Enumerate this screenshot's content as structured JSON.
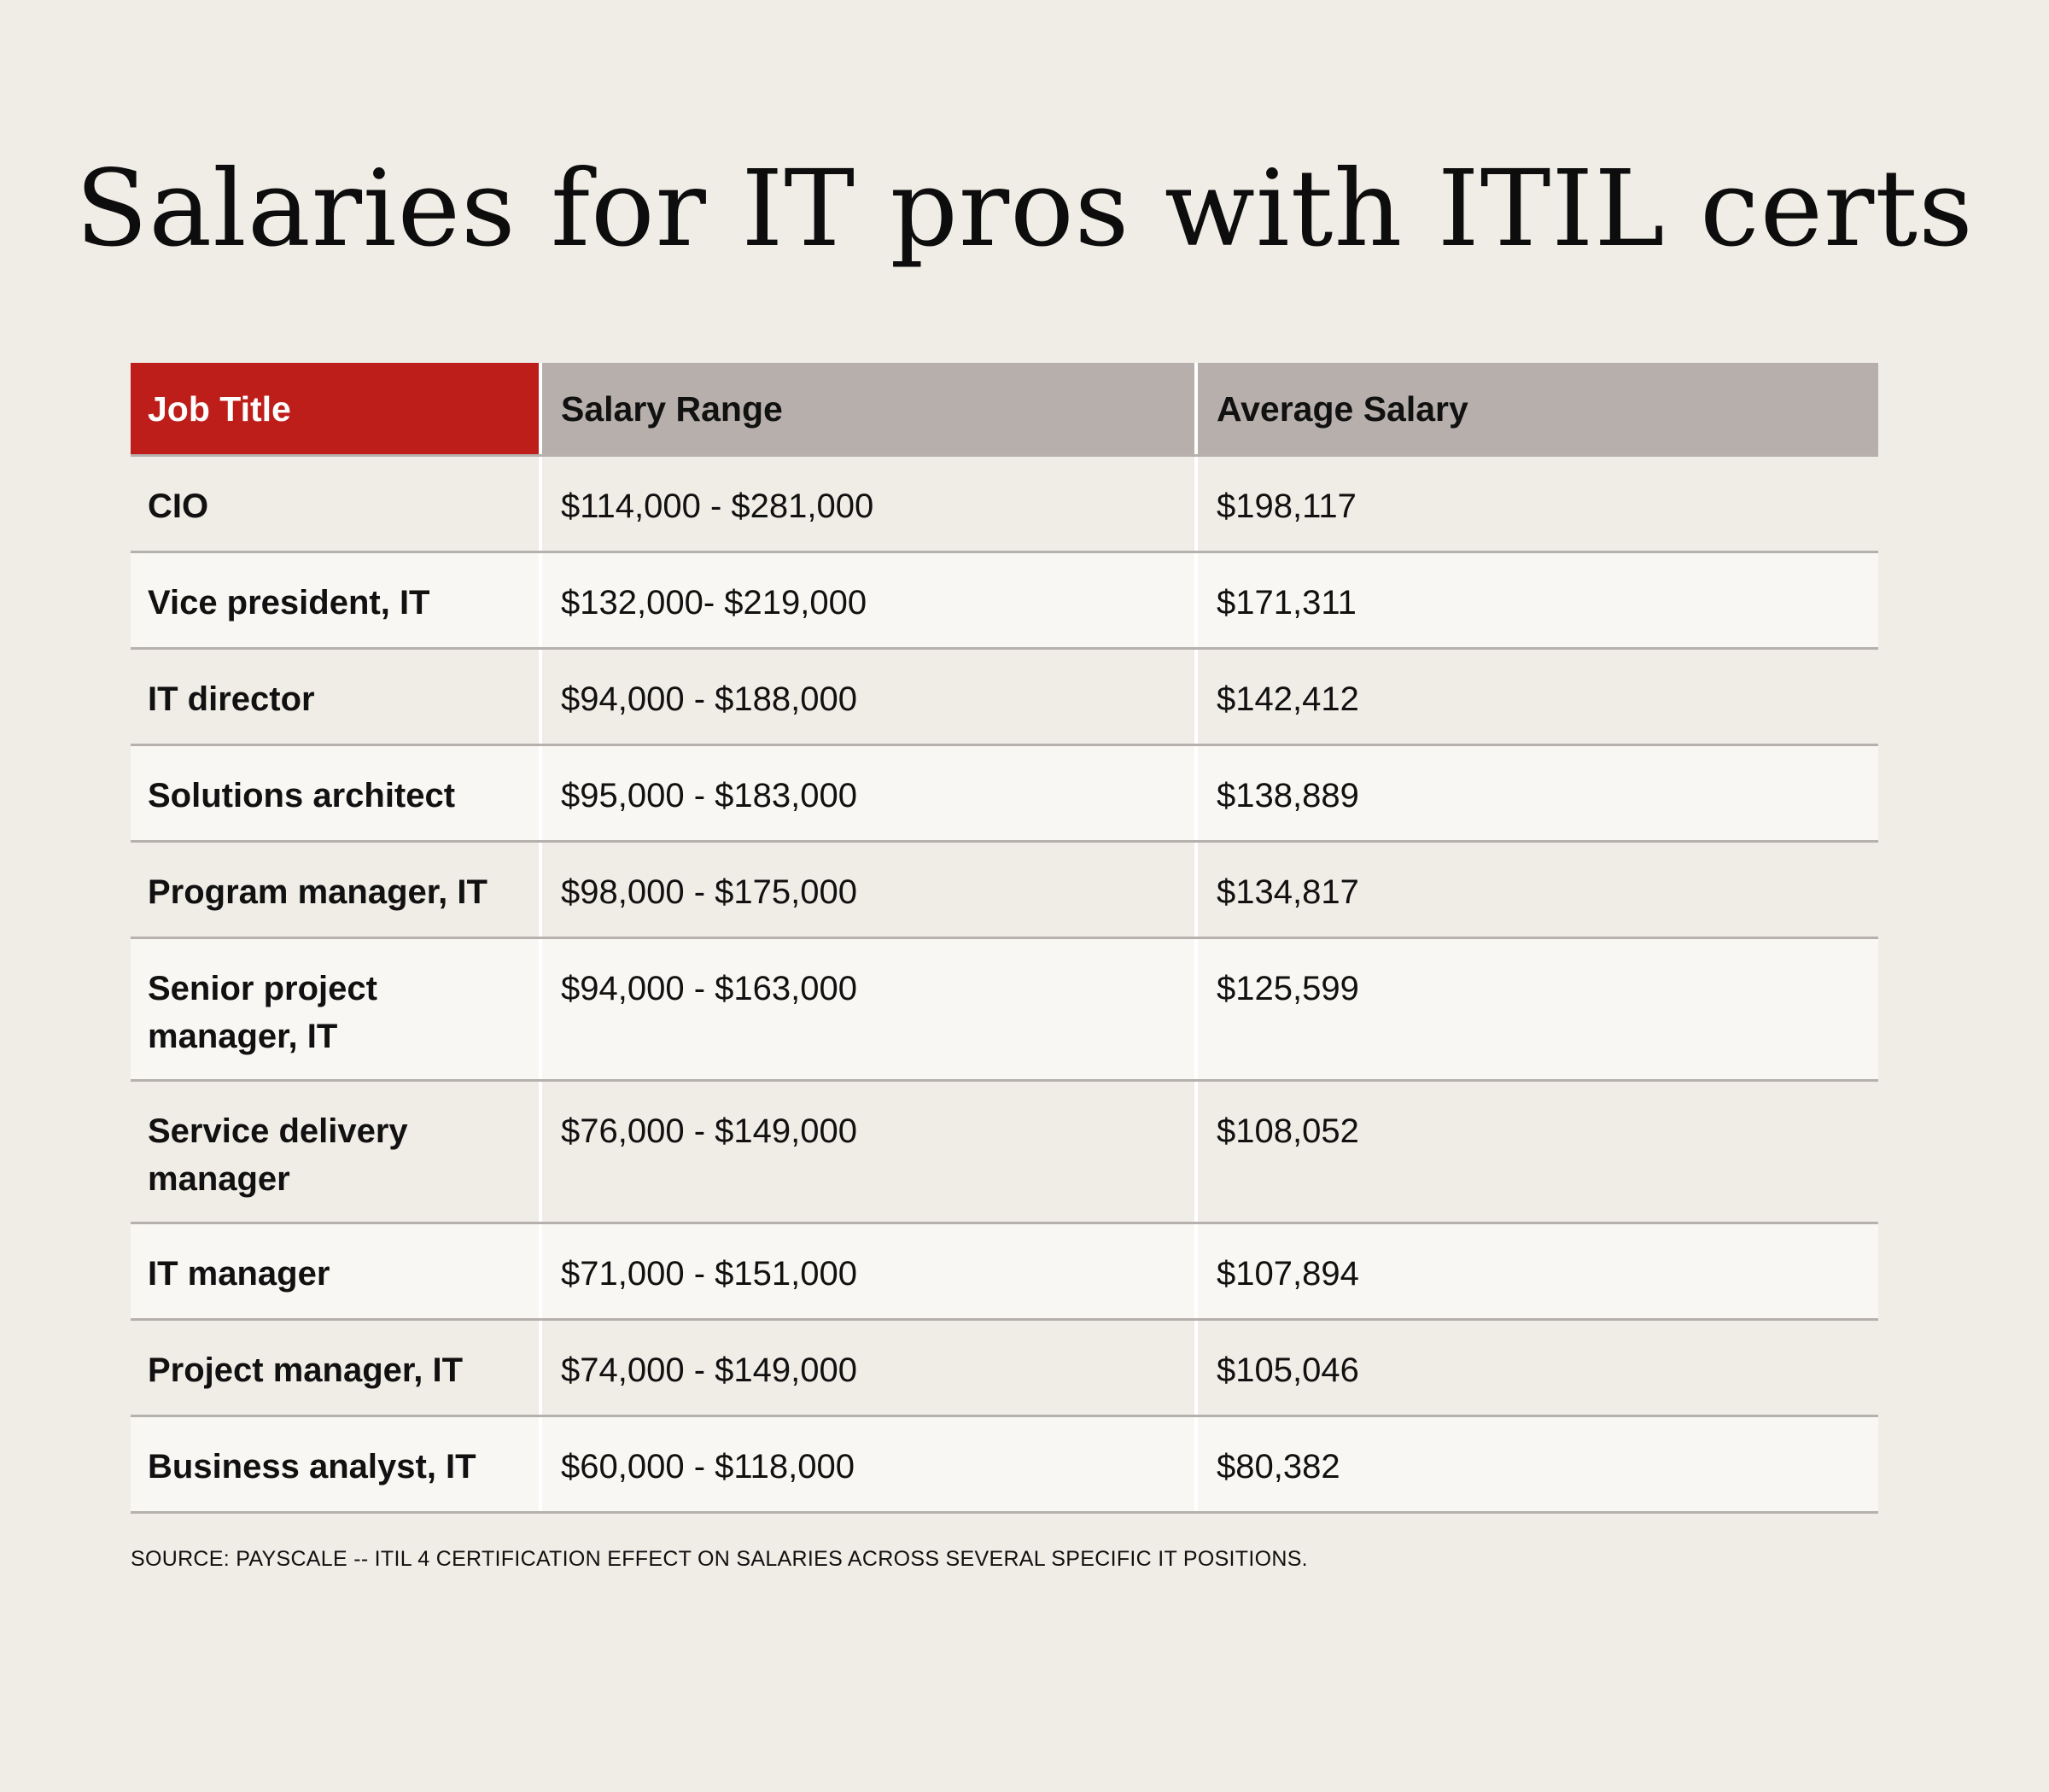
{
  "title": "Salaries for IT pros with ITIL certs",
  "header": {
    "job_title": "Job Title",
    "salary_range": "Salary Range",
    "average_salary": "Average Salary"
  },
  "rows": [
    {
      "job": "CIO",
      "range": "$114,000 - $281,000",
      "avg": "$198,117"
    },
    {
      "job": "Vice president, IT",
      "range": "$132,000- $219,000",
      "avg": "$171,311"
    },
    {
      "job": "IT director",
      "range": "$94,000 - $188,000",
      "avg": "$142,412"
    },
    {
      "job": "Solutions architect",
      "range": "$95,000 - $183,000",
      "avg": "$138,889"
    },
    {
      "job": "Program manager, IT",
      "range": "$98,000 - $175,000",
      "avg": "$134,817"
    },
    {
      "job": "Senior project manager, IT",
      "range": "$94,000 - $163,000",
      "avg": "$125,599"
    },
    {
      "job": "Service delivery manager",
      "range": "$76,000 - $149,000",
      "avg": "$108,052"
    },
    {
      "job": "IT manager",
      "range": "$71,000 - $151,000",
      "avg": "$107,894"
    },
    {
      "job": "Project manager, IT",
      "range": "$74,000 - $149,000",
      "avg": "$105,046"
    },
    {
      "job": "Business analyst, IT",
      "range": "$60,000 - $118,000",
      "avg": "$80,382"
    }
  ],
  "source": "SOURCE: PAYSCALE -- ITIL 4 CERTIFICATION EFFECT ON SALARIES ACROSS SEVERAL SPECIFIC IT POSITIONS.",
  "colors": {
    "background": "#f0ece6",
    "header_accent": "#be1e1a",
    "header_gray": "#b7afab",
    "row_alt": "#f9f7f4"
  },
  "chart_data": {
    "type": "table",
    "title": "Salaries for IT pros with ITIL certs",
    "columns": [
      "Job Title",
      "Salary Range",
      "Average Salary"
    ],
    "rows": [
      [
        "CIO",
        "$114,000 - $281,000",
        "$198,117"
      ],
      [
        "Vice president, IT",
        "$132,000- $219,000",
        "$171,311"
      ],
      [
        "IT director",
        "$94,000 - $188,000",
        "$142,412"
      ],
      [
        "Solutions architect",
        "$95,000 - $183,000",
        "$138,889"
      ],
      [
        "Program manager, IT",
        "$98,000 - $175,000",
        "$134,817"
      ],
      [
        "Senior project manager, IT",
        "$94,000 - $163,000",
        "$125,599"
      ],
      [
        "Service delivery manager",
        "$76,000 - $149,000",
        "$108,052"
      ],
      [
        "IT manager",
        "$71,000 - $151,000",
        "$107,894"
      ],
      [
        "Project manager, IT",
        "$74,000 - $149,000",
        "$105,046"
      ],
      [
        "Business analyst, IT",
        "$60,000 - $118,000",
        "$80,382"
      ]
    ],
    "source": "SOURCE: PAYSCALE -- ITIL 4 CERTIFICATION EFFECT ON SALARIES ACROSS SEVERAL SPECIFIC IT POSITIONS."
  }
}
